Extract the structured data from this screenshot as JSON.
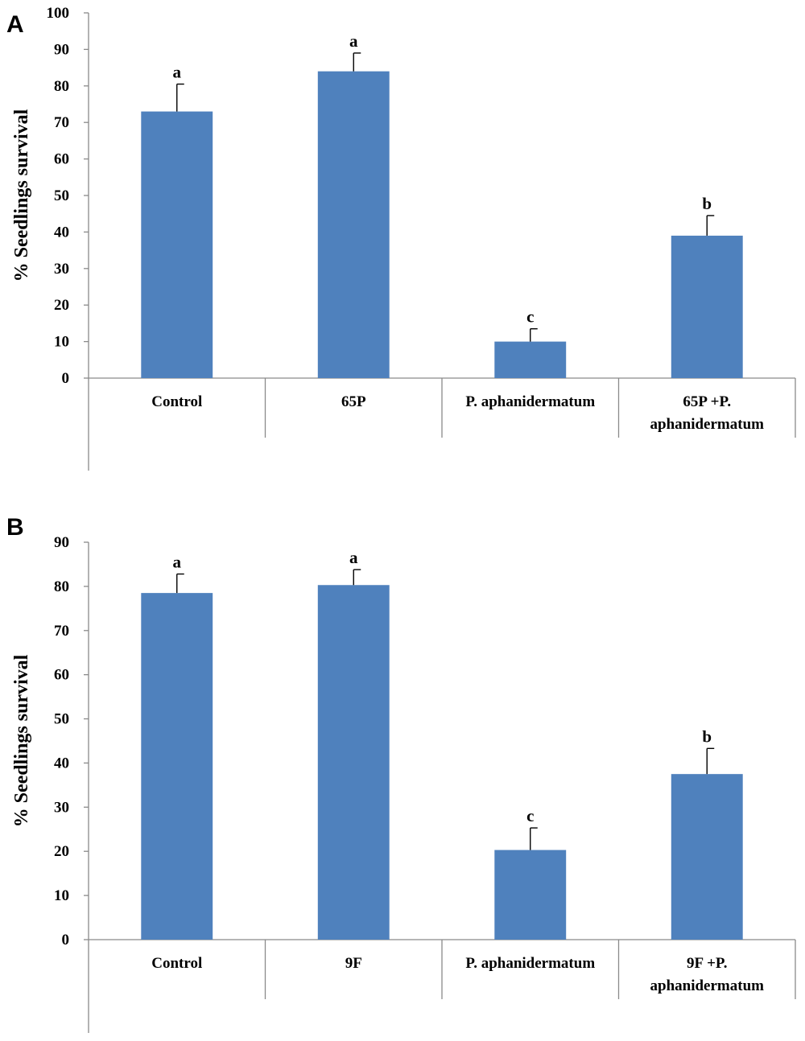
{
  "chart_data": [
    {
      "type": "bar",
      "panel_label": "A",
      "ylabel": "% Seedlings survival",
      "xlabel": "",
      "ylim": [
        0,
        100
      ],
      "yticks": [
        0,
        10,
        20,
        30,
        40,
        50,
        60,
        70,
        80,
        90,
        100
      ],
      "categories": [
        [
          "Control"
        ],
        [
          "65P"
        ],
        [
          "P. aphanidermatum"
        ],
        [
          "65P +P.",
          "aphanidermatum"
        ]
      ],
      "values": [
        73,
        84,
        10,
        39
      ],
      "errors": [
        7.5,
        5,
        3.5,
        5.5
      ],
      "significance": [
        "a",
        "a",
        "c",
        "b"
      ],
      "bar_color": "#4f81bd"
    },
    {
      "type": "bar",
      "panel_label": "B",
      "ylabel": "% Seedlings survival",
      "xlabel": "",
      "ylim": [
        0,
        90
      ],
      "yticks": [
        0,
        10,
        20,
        30,
        40,
        50,
        60,
        70,
        80,
        90
      ],
      "categories": [
        [
          "Control"
        ],
        [
          "9F"
        ],
        [
          "P. aphanidermatum"
        ],
        [
          "9F +P.",
          "aphanidermatum"
        ]
      ],
      "values": [
        78.5,
        80.3,
        20.3,
        37.5
      ],
      "errors": [
        4.3,
        3.5,
        5,
        5.8
      ],
      "significance": [
        "a",
        "a",
        "c",
        "b"
      ],
      "bar_color": "#4f81bd"
    }
  ]
}
